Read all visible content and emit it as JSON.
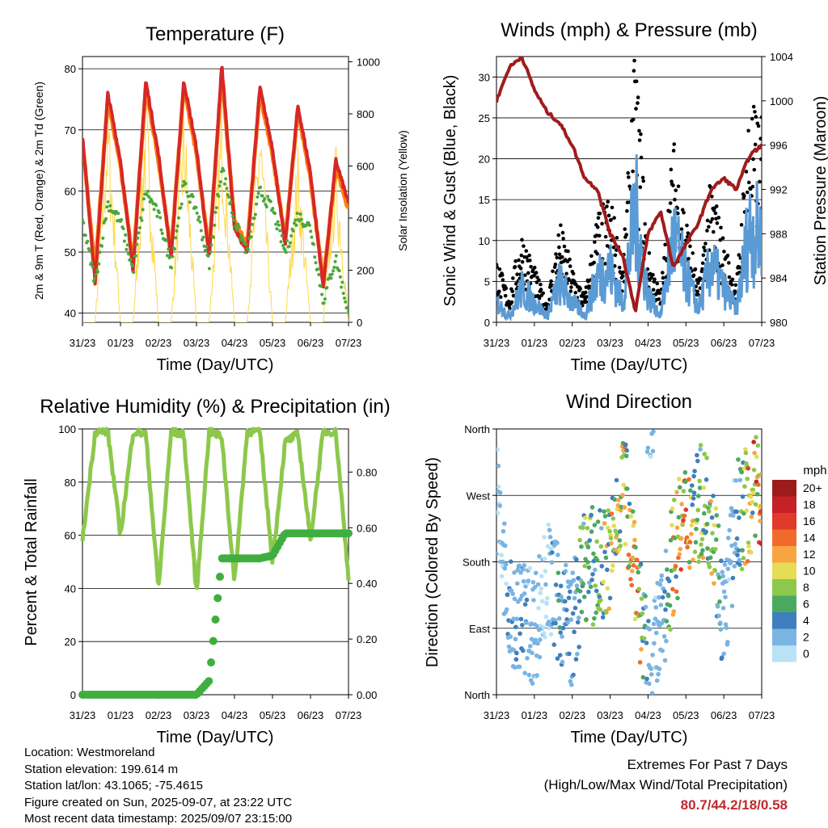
{
  "colors": {
    "red": "#d62728",
    "orange": "#ff7f0e",
    "green": "#4aa83a",
    "yellow": "#ffd84a",
    "maroon": "#a01c1c",
    "blue": "#5b9bd5",
    "black": "#000000",
    "rh_green": "#8cc84b",
    "precip_green": "#3fae3f"
  },
  "x_ticks": [
    "31/23",
    "01/23",
    "02/23",
    "03/23",
    "04/23",
    "05/23",
    "06/23",
    "07/23"
  ],
  "temperature": {
    "title": "Temperature (F)",
    "xlabel": "Time (Day/UTC)",
    "ylabel_left": "2m & 9m T (Red, Orange) & 2m Td (Green)",
    "ylabel_right": "Solar Insolation (Yellow)",
    "left_ticks": [
      "40",
      "50",
      "60",
      "70",
      "80"
    ],
    "right_ticks": [
      "0",
      "200",
      "400",
      "600",
      "800",
      "1000"
    ]
  },
  "winds": {
    "title": "Winds (mph) & Pressure (mb)",
    "xlabel": "Time (Day/UTC)",
    "ylabel_left": "Sonic Wind & Gust (Blue, Black)",
    "ylabel_right": "Station Pressure (Maroon)",
    "left_ticks": [
      "0",
      "5",
      "10",
      "15",
      "20",
      "25",
      "30"
    ],
    "right_ticks": [
      "980",
      "984",
      "988",
      "992",
      "996",
      "1000",
      "1004"
    ]
  },
  "humidity": {
    "title": "Relative Humidity (%) & Precipitation (in)",
    "xlabel": "Time (Day/UTC)",
    "ylabel_left": "Percent & Total Rainfall",
    "left_ticks": [
      "0",
      "20",
      "40",
      "60",
      "80",
      "100"
    ],
    "right_ticks": [
      "0.00",
      "0.20",
      "0.40",
      "0.60",
      "0.80"
    ]
  },
  "direction": {
    "title": "Wind Direction",
    "xlabel": "Time (Day/UTC)",
    "ylabel_left": "Direction (Colored By Speed)",
    "dir_ticks": [
      "North",
      "East",
      "South",
      "West",
      "North"
    ],
    "legend_title": "mph",
    "legend_labels": [
      "20+",
      "18",
      "16",
      "14",
      "12",
      "10",
      "8",
      "6",
      "4",
      "2",
      "0"
    ],
    "legend_colors": [
      "#9e1b1b",
      "#c62127",
      "#e03a2a",
      "#f06a2c",
      "#f9a443",
      "#e6dc55",
      "#8cc84b",
      "#4ba860",
      "#3f7fbf",
      "#79b4e3",
      "#b9e2f7"
    ]
  },
  "info": {
    "location": "Location: Westmoreland",
    "elevation": "Station elevation: 199.614 m",
    "latlon": "Station lat/lon: 43.1065; -75.4615",
    "created": "Figure created on Sun, 2025-09-07, at 23:22 UTC",
    "recent": "Most recent data timestamp: 2025/09/07 23:15:00"
  },
  "extremes": {
    "line1": "Extremes For Past 7 Days",
    "line2": "(High/Low/Max Wind/Total Precipitation)",
    "values": "80.7/44.2/18/0.58"
  },
  "chart_data": [
    {
      "type": "line",
      "title": "Temperature (F)",
      "xlabel": "Time (Day/UTC)",
      "ylabel": "2m & 9m T (Red, Orange) & 2m Td (Green)",
      "ylim": [
        38.5,
        82
      ],
      "y2lim": [
        0,
        1020
      ],
      "x": [
        "31/23",
        "01/06",
        "01/16",
        "01/23",
        "02/06",
        "02/16",
        "02/23",
        "03/06",
        "03/16",
        "03/23",
        "04/06",
        "04/16",
        "04/23",
        "05/06",
        "05/16",
        "05/23",
        "06/06",
        "06/16",
        "06/23",
        "07/06",
        "07/16",
        "07/23"
      ],
      "series": [
        {
          "name": "2m T",
          "values": [
            69,
            45,
            76,
            65,
            47,
            78,
            66,
            49,
            78,
            67,
            49,
            80.7,
            54,
            50,
            77,
            67,
            51,
            74,
            63,
            44.2,
            65,
            58
          ]
        },
        {
          "name": "9m T",
          "values": [
            68,
            47,
            75,
            64,
            48,
            77,
            65,
            50,
            77,
            66,
            50,
            79,
            55,
            51,
            76,
            66,
            52,
            73,
            62,
            45,
            64,
            57
          ]
        },
        {
          "name": "2m Td",
          "values": [
            55,
            45,
            58,
            55,
            47,
            60,
            56,
            48,
            61,
            57,
            48,
            64,
            55,
            50,
            60,
            57,
            50,
            56,
            54,
            42,
            49,
            40
          ]
        },
        {
          "name": "Solar Insolation",
          "values": [
            0,
            0,
            920,
            0,
            0,
            940,
            0,
            0,
            890,
            0,
            0,
            900,
            0,
            0,
            880,
            0,
            0,
            700,
            0,
            0,
            720,
            0
          ]
        }
      ]
    },
    {
      "type": "scatter",
      "title": "Winds (mph) & Pressure (mb)",
      "xlabel": "Time (Day/UTC)",
      "ylabel": "Sonic Wind & Gust (Blue, Black)",
      "ylim": [
        0,
        32.5
      ],
      "y2lim": [
        980,
        1004
      ],
      "x": [
        "31/23",
        "01/06",
        "01/16",
        "01/23",
        "02/06",
        "02/16",
        "02/23",
        "03/06",
        "03/16",
        "03/23",
        "04/06",
        "04/16",
        "04/23",
        "05/06",
        "05/16",
        "05/23",
        "06/06",
        "06/16",
        "06/23",
        "07/06",
        "07/16",
        "07/23"
      ],
      "series": [
        {
          "name": "Gust",
          "values": [
            7,
            3,
            10,
            6,
            2,
            11,
            6,
            3,
            12,
            14,
            6,
            30,
            8,
            3,
            20,
            12,
            4,
            16,
            9,
            4,
            24,
            22
          ]
        },
        {
          "name": "Wind",
          "values": [
            3,
            1,
            5,
            3,
            1,
            6,
            3,
            1,
            7,
            8,
            3,
            17,
            4,
            1,
            13,
            7,
            2,
            9,
            5,
            2,
            14,
            13
          ]
        },
        {
          "name": "Station Pressure",
          "values": [
            1000,
            1003,
            1004,
            1001,
            999,
            998,
            996,
            993,
            992,
            988,
            986,
            981,
            988,
            990,
            985,
            987,
            989,
            992,
            993,
            992,
            995,
            996
          ]
        }
      ]
    },
    {
      "type": "line",
      "title": "Relative Humidity (%) & Precipitation (in)",
      "xlabel": "Time (Day/UTC)",
      "ylabel": "Percent & Total Rainfall",
      "ylim": [
        0,
        100
      ],
      "y2lim": [
        0,
        0.955
      ],
      "x": [
        "31/23",
        "01/06",
        "01/16",
        "01/23",
        "02/06",
        "02/16",
        "02/23",
        "03/06",
        "03/16",
        "03/23",
        "04/06",
        "04/16",
        "04/23",
        "05/06",
        "05/16",
        "05/23",
        "06/06",
        "06/16",
        "06/23",
        "07/06",
        "07/16",
        "07/23"
      ],
      "series": [
        {
          "name": "Relative Humidity",
          "values": [
            58,
            99,
            99,
            60,
            99,
            98,
            40,
            99,
            98,
            38,
            99,
            97,
            42,
            99,
            99,
            50,
            95,
            98,
            58,
            99,
            99,
            44
          ]
        },
        {
          "name": "Total Precipitation",
          "values": [
            0,
            0,
            0,
            0,
            0,
            0,
            0,
            0,
            0,
            0,
            0.05,
            0.49,
            0.49,
            0.49,
            0.49,
            0.5,
            0.58,
            0.58,
            0.58,
            0.58,
            0.58,
            0.58
          ]
        }
      ]
    },
    {
      "type": "scatter",
      "title": "Wind Direction",
      "xlabel": "Time (Day/UTC)",
      "ylabel": "Direction (Colored By Speed)",
      "ylim": [
        0,
        360
      ],
      "x": [
        "31/23",
        "01/06",
        "01/16",
        "01/23",
        "02/06",
        "02/16",
        "02/23",
        "03/06",
        "03/16",
        "03/23",
        "04/06",
        "04/16",
        "04/23",
        "05/06",
        "05/16",
        "05/23",
        "06/06",
        "06/16",
        "06/23",
        "07/06",
        "07/16",
        "07/23"
      ],
      "series": [
        {
          "name": "Direction",
          "values": [
            270,
            100,
            110,
            90,
            160,
            120,
            90,
            180,
            170,
            180,
            290,
            180,
            20,
            90,
            190,
            240,
            260,
            250,
            100,
            240,
            260,
            280
          ]
        },
        {
          "name": "Speed",
          "values": [
            1,
            3,
            4,
            2,
            1,
            5,
            3,
            8,
            7,
            12,
            10,
            16,
            3,
            2,
            12,
            14,
            8,
            12,
            2,
            3,
            14,
            16
          ]
        }
      ]
    }
  ]
}
